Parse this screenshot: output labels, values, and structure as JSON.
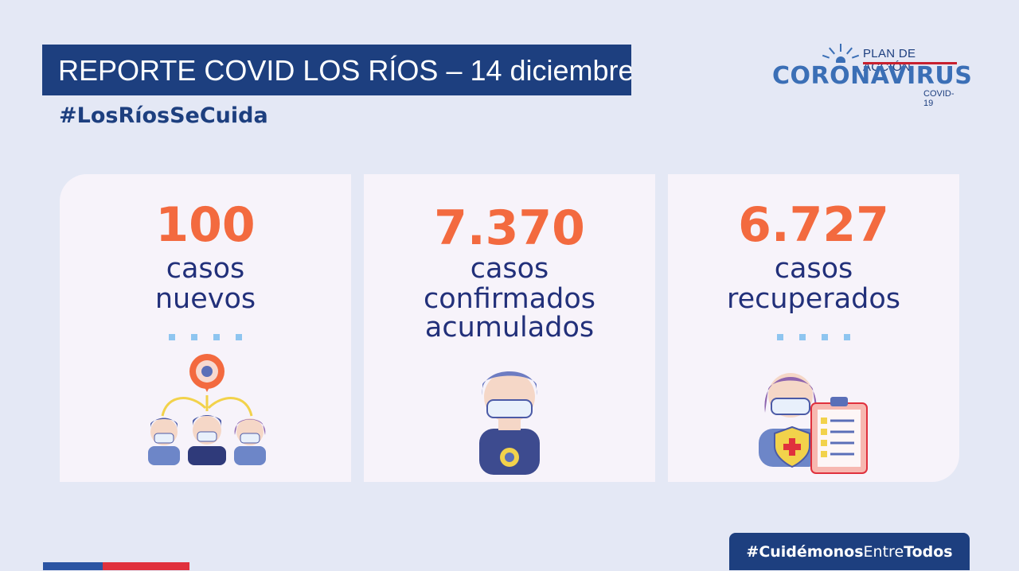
{
  "header": {
    "title": "REPORTE COVID LOS RÍOS – 14 diciembre",
    "hashtag": "#LosRíosSeCuida"
  },
  "logo": {
    "plan": "PLAN DE ACCIÓN",
    "name": "CORONAVIRUS",
    "sub": "COVID-19"
  },
  "cards": [
    {
      "number": "100",
      "label1": "casos",
      "label2": "nuevos"
    },
    {
      "number": "7.370",
      "label1": "casos",
      "label2": "confirmados",
      "label3": "acumulados"
    },
    {
      "number": "6.727",
      "label1": "casos",
      "label2": "recuperados"
    }
  ],
  "footer": {
    "hashtag_bold1": "#Cuidémonos",
    "hashtag_light": "Entre",
    "hashtag_bold2": "Todos"
  },
  "colors": {
    "navy": "#1d3f7f",
    "orange": "#f36a3f",
    "background": "#e4e8f5",
    "card": "#f7f3fa"
  }
}
